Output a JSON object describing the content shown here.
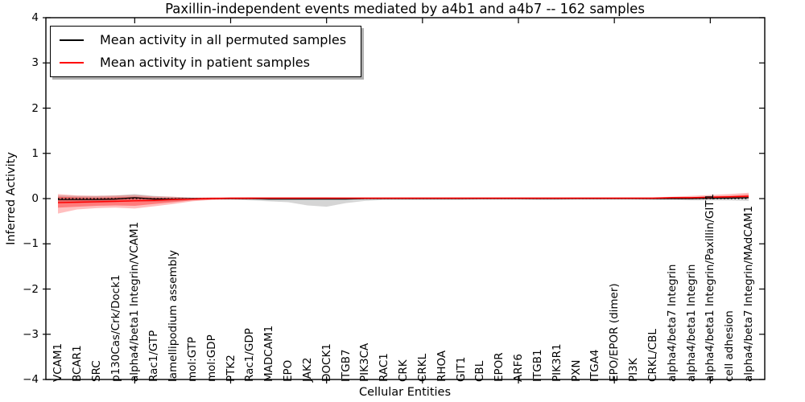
{
  "figure": {
    "title": "Paxillin-independent events mediated by a4b1 and a4b7 -- 162 samples",
    "xlabel": "Cellular Entities",
    "ylabel": "Inferred Activity"
  },
  "legend": {
    "items": [
      {
        "label": "Mean activity in all permuted samples",
        "color": "#000000"
      },
      {
        "label": "Mean activity in patient samples",
        "color": "#ff0000"
      }
    ]
  },
  "chart_data": {
    "type": "line",
    "title": "Paxillin-independent events mediated by a4b1 and a4b7 -- 162 samples",
    "xlabel": "Cellular Entities",
    "ylabel": "Inferred Activity",
    "ylim": [
      -4,
      4
    ],
    "grid": false,
    "legend_position": "upper left",
    "yticks": [
      4,
      3,
      2,
      1,
      0,
      -1,
      -2,
      -3,
      -4
    ],
    "ytick_labels": [
      "4",
      "3",
      "2",
      "1",
      "0",
      "−1",
      "−2",
      "−3",
      "−4"
    ],
    "xtick_major_indices": [
      4,
      9,
      14,
      19,
      24,
      29,
      34
    ],
    "categories": [
      "VCAM1",
      "BCAR1",
      "SRC",
      "p130Cas/Crk/Dock1",
      "alpha4/beta1 Integrin/VCAM1",
      "Rac1/GTP",
      "lamellipodium assembly",
      "mol:GTP",
      "mol:GDP",
      "PTK2",
      "Rac1/GDP",
      "MADCAM1",
      "EPO",
      "JAK2",
      "DOCK1",
      "ITGB7",
      "PIK3CA",
      "RAC1",
      "CRK",
      "CRKL",
      "RHOA",
      "GIT1",
      "CBL",
      "EPOR",
      "ARF6",
      "ITGB1",
      "PIK3R1",
      "PXN",
      "ITGA4",
      "EPO/EPOR (dimer)",
      "PI3K",
      "CRKL/CBL",
      "alpha4/beta7 Integrin",
      "alpha4/beta1 Integrin",
      "alpha4/beta1 Integrin/Paxillin/GIT1",
      "cell adhesion",
      "alpha4/beta7 Integrin/MAdCAM1"
    ],
    "series": [
      {
        "name": "mean-activity-permuted-samples",
        "color": "#000000",
        "style": "solid",
        "width": 1.3,
        "values": [
          -0.02,
          -0.02,
          -0.02,
          -0.01,
          0.02,
          -0.01,
          -0.01,
          0,
          0,
          0,
          0,
          -0.01,
          -0.01,
          -0.01,
          -0.01,
          -0.01,
          0,
          0,
          0,
          0,
          0,
          0,
          0,
          0,
          0,
          0,
          0,
          0,
          0,
          0,
          0,
          0,
          0,
          0,
          0.01,
          0.01,
          0.02
        ]
      },
      {
        "name": "zero-reference-line",
        "color": "#000000",
        "style": "dotted",
        "y": 0
      },
      {
        "name": "mean-activity-patient-samples",
        "color": "#ff0000",
        "style": "solid",
        "width": 1.5,
        "values": [
          -0.09,
          -0.08,
          -0.07,
          -0.06,
          -0.05,
          -0.04,
          -0.02,
          -0.01,
          0,
          0.01,
          0.01,
          0.01,
          0.01,
          0.01,
          0.01,
          0.01,
          0.01,
          0.01,
          0.01,
          0.01,
          0.01,
          0.01,
          0.01,
          0.01,
          0.01,
          0.01,
          0.01,
          0.01,
          0.01,
          0.01,
          0.01,
          0.01,
          0.02,
          0.02,
          0.03,
          0.04,
          0.05
        ]
      }
    ],
    "bands": [
      {
        "name": "permuted-samples-range",
        "color": "rgba(125,125,125,0.32)",
        "upper": [
          0.07,
          0.06,
          0.06,
          0.07,
          0.1,
          0.06,
          0.04,
          0.02,
          0.02,
          0.02,
          0.03,
          0.03,
          0.03,
          0.03,
          0.03,
          0.02,
          0.02,
          0.02,
          0.02,
          0.02,
          0.02,
          0.02,
          0.02,
          0.02,
          0.02,
          0.02,
          0.02,
          0.02,
          0.02,
          0.02,
          0.02,
          0.02,
          0.03,
          0.03,
          0.04,
          0.05,
          0.06
        ],
        "lower": [
          -0.1,
          -0.1,
          -0.09,
          -0.08,
          -0.06,
          -0.07,
          -0.06,
          -0.03,
          -0.02,
          -0.02,
          -0.04,
          -0.06,
          -0.08,
          -0.15,
          -0.18,
          -0.1,
          -0.05,
          -0.03,
          -0.03,
          -0.03,
          -0.03,
          -0.03,
          -0.02,
          -0.02,
          -0.02,
          -0.03,
          -0.03,
          -0.02,
          -0.02,
          -0.02,
          -0.02,
          -0.03,
          -0.03,
          -0.04,
          -0.04,
          -0.04,
          -0.05
        ]
      },
      {
        "name": "patient-samples-outer-range",
        "color": "rgba(255,0,0,0.25)",
        "upper": [
          0.1,
          0.07,
          0.06,
          0.07,
          0.08,
          0.05,
          0.04,
          0.02,
          0.03,
          0.03,
          0.03,
          0.03,
          0.03,
          0.03,
          0.03,
          0.03,
          0.03,
          0.03,
          0.03,
          0.03,
          0.03,
          0.03,
          0.03,
          0.03,
          0.03,
          0.03,
          0.03,
          0.03,
          0.03,
          0.03,
          0.03,
          0.03,
          0.04,
          0.06,
          0.08,
          0.1,
          0.13
        ],
        "lower": [
          -0.33,
          -0.24,
          -0.21,
          -0.2,
          -0.22,
          -0.17,
          -0.12,
          -0.06,
          -0.03,
          -0.02,
          -0.02,
          -0.01,
          -0.01,
          -0.01,
          -0.01,
          -0.01,
          -0.01,
          -0.01,
          -0.01,
          -0.01,
          -0.01,
          -0.01,
          -0.01,
          -0.01,
          -0.01,
          -0.01,
          -0.01,
          -0.01,
          -0.01,
          -0.01,
          -0.01,
          -0.01,
          -0.01,
          -0.01,
          -0.01,
          0,
          0
        ]
      },
      {
        "name": "patient-samples-inner-range",
        "color": "rgba(255,0,0,0.35)",
        "upper": [
          0.04,
          0.03,
          0.02,
          0.03,
          0.04,
          0.02,
          0.01,
          0.01,
          0.02,
          0.02,
          0.02,
          0.02,
          0.02,
          0.02,
          0.02,
          0.02,
          0.02,
          0.02,
          0.02,
          0.02,
          0.02,
          0.02,
          0.02,
          0.02,
          0.02,
          0.02,
          0.02,
          0.02,
          0.02,
          0.02,
          0.02,
          0.02,
          0.03,
          0.03,
          0.05,
          0.06,
          0.09
        ],
        "lower": [
          -0.2,
          -0.18,
          -0.16,
          -0.15,
          -0.16,
          -0.12,
          -0.08,
          -0.04,
          -0.02,
          -0.01,
          -0.01,
          0,
          0,
          0,
          0,
          0,
          0,
          0,
          0,
          0,
          0,
          0,
          0,
          0,
          0,
          0,
          0,
          0,
          0,
          0,
          0,
          0,
          0,
          0.01,
          0.01,
          0.02,
          0.02
        ]
      }
    ]
  }
}
